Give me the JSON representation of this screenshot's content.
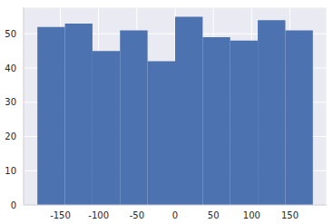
{
  "chart_data": {
    "type": "histogram",
    "bins": [
      -180,
      -144,
      -108,
      -72,
      -36,
      0,
      36,
      72,
      108,
      144,
      180
    ],
    "values": [
      52,
      53,
      45,
      51,
      42,
      55,
      49,
      48,
      54,
      51
    ],
    "color": "#4c72b0",
    "xlim": [
      -198,
      198
    ],
    "xticks": [
      -150,
      -100,
      -50,
      0,
      50,
      100,
      150
    ],
    "ylim": [
      0,
      57.75
    ],
    "yticks": [
      0,
      10,
      20,
      30,
      40,
      50
    ],
    "grid": true
  }
}
